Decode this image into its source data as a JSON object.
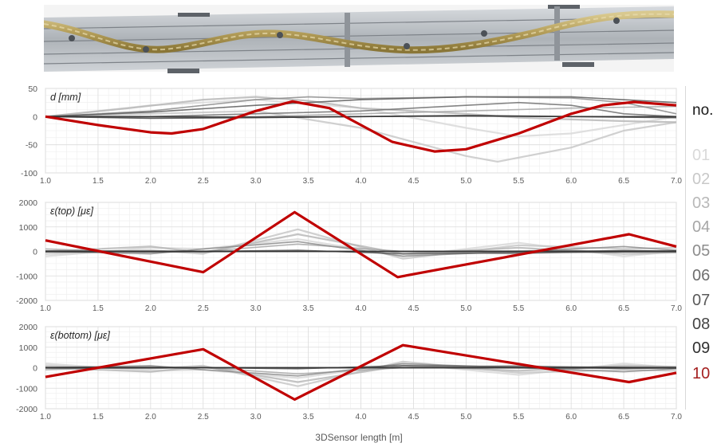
{
  "photo": {
    "name": "3D sensor mounted on rail"
  },
  "legend": {
    "title": "no.",
    "items": [
      {
        "label": "01",
        "color": "#d9d9d9"
      },
      {
        "label": "02",
        "color": "#c8c8c8"
      },
      {
        "label": "03",
        "color": "#b8b8b8"
      },
      {
        "label": "04",
        "color": "#a6a6a6"
      },
      {
        "label": "05",
        "color": "#8c8c8c"
      },
      {
        "label": "06",
        "color": "#6e6e6e"
      },
      {
        "label": "07",
        "color": "#5a5a5a"
      },
      {
        "label": "08",
        "color": "#444444"
      },
      {
        "label": "09",
        "color": "#303030"
      },
      {
        "label": "10",
        "color": "#a52020"
      }
    ]
  },
  "colors": {
    "highlight": "#c00000",
    "grid": "#e3e3e3",
    "axis": "#c8c8c8"
  },
  "chart_data": [
    {
      "type": "line",
      "ylabel": "d [mm]",
      "xlabel": "",
      "xlim": [
        1.0,
        7.0
      ],
      "ylim": [
        -100,
        50
      ],
      "xticks": [
        "1.0",
        "1.5",
        "2.0",
        "2.5",
        "3.0",
        "3.5",
        "4.0",
        "4.5",
        "5.0",
        "5.5",
        "6.0",
        "6.5",
        "7.0"
      ],
      "yticks": [
        "50",
        "0",
        "-50",
        "-100"
      ],
      "series": [
        {
          "name": "01",
          "x": [
            1.0,
            2.0,
            3.0,
            4.0,
            5.0,
            5.5,
            6.0,
            6.5,
            7.0
          ],
          "y": [
            0,
            20,
            30,
            15,
            -20,
            -35,
            -30,
            -15,
            0
          ]
        },
        {
          "name": "02",
          "x": [
            1.0,
            2.0,
            3.0,
            4.0,
            5.0,
            5.3,
            6.0,
            6.5,
            7.0
          ],
          "y": [
            0,
            5,
            10,
            -20,
            -70,
            -80,
            -55,
            -25,
            -10
          ]
        },
        {
          "name": "03",
          "x": [
            1.0,
            1.8,
            2.5,
            3.0,
            3.5,
            4.0,
            4.5,
            5.0,
            5.5,
            6.0,
            6.5,
            7.0
          ],
          "y": [
            0,
            15,
            30,
            35,
            28,
            15,
            10,
            5,
            -2,
            -5,
            -8,
            -10
          ]
        },
        {
          "name": "04",
          "x": [
            1.0,
            2.0,
            3.0,
            4.0,
            5.0,
            6.0,
            7.0
          ],
          "y": [
            0,
            -2,
            0,
            5,
            10,
            15,
            18
          ]
        },
        {
          "name": "05",
          "x": [
            1.0,
            2.0,
            3.0,
            3.5,
            4.0,
            5.0,
            6.0,
            6.5,
            7.0
          ],
          "y": [
            0,
            10,
            30,
            35,
            32,
            35,
            33,
            25,
            5
          ]
        },
        {
          "name": "06",
          "x": [
            1.0,
            2.0,
            3.0,
            4.0,
            4.5,
            5.0,
            5.5,
            6.0,
            6.5,
            7.0
          ],
          "y": [
            0,
            0,
            5,
            10,
            15,
            20,
            25,
            20,
            5,
            0
          ]
        },
        {
          "name": "07",
          "x": [
            1.0,
            2.0,
            3.0,
            4.0,
            5.0,
            6.0,
            7.0
          ],
          "y": [
            0,
            8,
            20,
            30,
            35,
            35,
            25
          ]
        },
        {
          "name": "08",
          "x": [
            1.0,
            2.0,
            3.0,
            4.0,
            5.0,
            6.0,
            7.0
          ],
          "y": [
            0,
            -3,
            -2,
            0,
            2,
            0,
            -2
          ]
        },
        {
          "name": "09",
          "x": [
            1.0,
            2.0,
            3.0,
            4.0,
            5.0,
            6.0,
            7.0
          ],
          "y": [
            0,
            0,
            -1,
            0,
            1,
            0,
            0
          ]
        },
        {
          "name": "10",
          "x": [
            1.0,
            1.5,
            2.0,
            2.2,
            2.5,
            3.0,
            3.35,
            3.7,
            4.0,
            4.3,
            4.7,
            5.0,
            5.5,
            6.0,
            6.3,
            6.6,
            7.0
          ],
          "y": [
            0,
            -15,
            -28,
            -30,
            -22,
            10,
            27,
            15,
            -15,
            -45,
            -62,
            -58,
            -30,
            5,
            20,
            26,
            20
          ]
        }
      ]
    },
    {
      "type": "line",
      "ylabel": "ε(top) [με]",
      "xlabel": "",
      "xlim": [
        1.0,
        7.0
      ],
      "ylim": [
        -2000,
        2000
      ],
      "xticks": [
        "1.0",
        "1.5",
        "2.0",
        "2.5",
        "3.0",
        "3.5",
        "4.0",
        "4.5",
        "5.0",
        "5.5",
        "6.0",
        "6.5",
        "7.0"
      ],
      "yticks": [
        "2000",
        "1000",
        "0",
        "-1000",
        "-2000"
      ],
      "series": [
        {
          "name": "01",
          "x": [
            1.0,
            2.0,
            2.5,
            3.4,
            4.4,
            5.5,
            6.5,
            7.0
          ],
          "y": [
            -200,
            150,
            100,
            500,
            -200,
            350,
            -200,
            0
          ]
        },
        {
          "name": "02",
          "x": [
            1.0,
            2.0,
            2.5,
            3.4,
            4.4,
            5.5,
            6.5,
            7.0
          ],
          "y": [
            -100,
            50,
            -100,
            900,
            -300,
            250,
            100,
            150
          ]
        },
        {
          "name": "03",
          "x": [
            1.0,
            2.0,
            2.5,
            3.4,
            4.4,
            5.5,
            6.5,
            7.0
          ],
          "y": [
            0,
            200,
            -50,
            700,
            -100,
            150,
            -100,
            -50
          ]
        },
        {
          "name": "04",
          "x": [
            1.0,
            2.0,
            2.5,
            3.4,
            4.4,
            5.5,
            6.5,
            7.0
          ],
          "y": [
            100,
            -50,
            0,
            300,
            0,
            -100,
            50,
            0
          ]
        },
        {
          "name": "05",
          "x": [
            1.0,
            2.0,
            2.5,
            3.4,
            4.4,
            5.5,
            6.5,
            7.0
          ],
          "y": [
            0,
            -100,
            100,
            400,
            -200,
            0,
            200,
            50
          ]
        },
        {
          "name": "06",
          "x": [
            1.0,
            7.0
          ],
          "y": [
            0,
            0
          ]
        },
        {
          "name": "07",
          "x": [
            1.0,
            2.5,
            3.4,
            4.4,
            7.0
          ],
          "y": [
            0,
            0,
            50,
            -100,
            0
          ]
        },
        {
          "name": "08",
          "x": [
            1.0,
            7.0
          ],
          "y": [
            20,
            -20
          ]
        },
        {
          "name": "09",
          "x": [
            1.0,
            7.0
          ],
          "y": [
            -20,
            20
          ]
        },
        {
          "name": "10",
          "x": [
            1.0,
            2.5,
            3.37,
            4.35,
            6.55,
            7.0
          ],
          "y": [
            450,
            -850,
            1600,
            -1050,
            700,
            200
          ]
        }
      ]
    },
    {
      "type": "line",
      "ylabel": "ε(bottom) [με]",
      "xlabel": "3DSensor length [m]",
      "xlim": [
        1.0,
        7.0
      ],
      "ylim": [
        -2000,
        2000
      ],
      "xticks": [
        "1.0",
        "1.5",
        "2.0",
        "2.5",
        "3.0",
        "3.5",
        "4.0",
        "4.5",
        "5.0",
        "5.5",
        "6.0",
        "6.5",
        "7.0"
      ],
      "yticks": [
        "2000",
        "1000",
        "0",
        "-1000",
        "-2000"
      ],
      "series": [
        {
          "name": "01",
          "x": [
            1.0,
            2.0,
            2.5,
            3.4,
            4.4,
            5.5,
            6.5,
            7.0
          ],
          "y": [
            200,
            -150,
            -100,
            -500,
            200,
            -350,
            200,
            0
          ]
        },
        {
          "name": "02",
          "x": [
            1.0,
            2.0,
            2.5,
            3.4,
            4.4,
            5.5,
            6.5,
            7.0
          ],
          "y": [
            100,
            -50,
            100,
            -900,
            300,
            -250,
            -100,
            -150
          ]
        },
        {
          "name": "03",
          "x": [
            1.0,
            2.0,
            2.5,
            3.4,
            4.4,
            5.5,
            6.5,
            7.0
          ],
          "y": [
            0,
            -200,
            50,
            -700,
            100,
            -150,
            100,
            50
          ]
        },
        {
          "name": "04",
          "x": [
            1.0,
            2.0,
            2.5,
            3.4,
            4.4,
            5.5,
            6.5,
            7.0
          ],
          "y": [
            -100,
            50,
            0,
            -300,
            0,
            100,
            -50,
            0
          ]
        },
        {
          "name": "05",
          "x": [
            1.0,
            2.0,
            2.5,
            3.4,
            4.4,
            5.5,
            6.5,
            7.0
          ],
          "y": [
            0,
            100,
            -100,
            -400,
            200,
            0,
            -200,
            -50
          ]
        },
        {
          "name": "06",
          "x": [
            1.0,
            7.0
          ],
          "y": [
            0,
            0
          ]
        },
        {
          "name": "07",
          "x": [
            1.0,
            2.5,
            3.4,
            4.4,
            7.0
          ],
          "y": [
            0,
            0,
            -50,
            100,
            0
          ]
        },
        {
          "name": "08",
          "x": [
            1.0,
            7.0
          ],
          "y": [
            -20,
            20
          ]
        },
        {
          "name": "09",
          "x": [
            1.0,
            7.0
          ],
          "y": [
            20,
            -20
          ]
        },
        {
          "name": "10",
          "x": [
            1.0,
            2.5,
            3.37,
            4.4,
            6.55,
            7.0
          ],
          "y": [
            -450,
            900,
            -1550,
            1100,
            -700,
            -250
          ]
        }
      ]
    }
  ]
}
